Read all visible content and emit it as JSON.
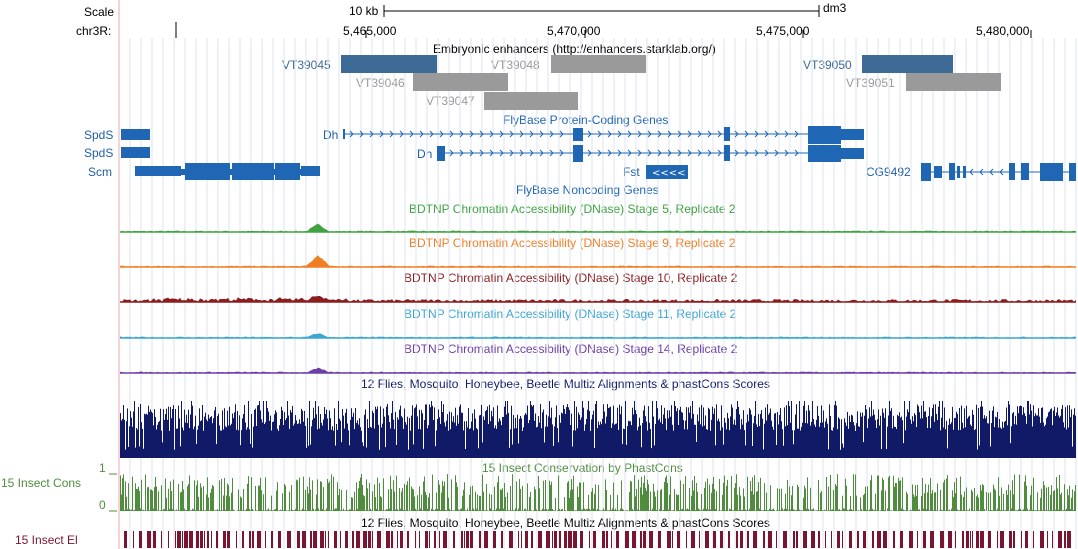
{
  "header": {
    "scale_label": "Scale",
    "scale_value": "10 kb",
    "assembly": "dm3",
    "chrom_label": "chr3R:",
    "positions": [
      "5,465,000",
      "5,470,000",
      "5,475,000",
      "5,480,000"
    ]
  },
  "enhancers": {
    "title": "Embryonic enhancers (http://enhancers.starklab.org/)",
    "items": [
      {
        "name": "VT39045",
        "color": "#3e6a96",
        "strong": true
      },
      {
        "name": "VT39048",
        "color": "#9a9a9a",
        "strong": false
      },
      {
        "name": "VT39050",
        "color": "#3e6a96",
        "strong": true
      },
      {
        "name": "VT39046",
        "color": "#9a9a9a",
        "strong": false
      },
      {
        "name": "VT39051",
        "color": "#9a9a9a",
        "strong": false
      },
      {
        "name": "VT39047",
        "color": "#9a9a9a",
        "strong": false
      }
    ]
  },
  "genes": {
    "title": "FlyBase Protein-Coding Genes",
    "noncoding_title": "FlyBase Noncoding Genes",
    "left_labels": [
      "SpdS",
      "SpdS",
      "Scm"
    ],
    "inline_labels": [
      "Dh",
      "Dh",
      "Fst",
      "CG9492"
    ],
    "color": "#1f66b5"
  },
  "dnase": [
    {
      "title": "BDTNP Chromatin Accessibility (DNase) Stage 5, Replicate 2",
      "color": "#3fa33f"
    },
    {
      "title": "BDTNP Chromatin Accessibility (DNase) Stage 9, Replicate 2",
      "color": "#f07f24"
    },
    {
      "title": "BDTNP Chromatin Accessibility (DNase) Stage 10, Replicate 2",
      "color": "#8b1d1d"
    },
    {
      "title": "BDTNP Chromatin Accessibility (DNase) Stage 11, Replicate 2",
      "color": "#3da6cf"
    },
    {
      "title": "BDTNP Chromatin Accessibility (DNase) Stage 14, Replicate 2",
      "color": "#6c3fa6"
    }
  ],
  "multiz": {
    "title": "12 Flies, Mosquito, Honeybee, Beetle Multiz Alignments & phastCons Scores",
    "color": "#111a66"
  },
  "phastcons": {
    "title": "15 Insect Conservation by PhastCons",
    "left_label": "15 Insect Cons",
    "ymax": "1",
    "ymin": "0",
    "color": "#4f8c3e"
  },
  "elements": {
    "title": "12 Flies, Mosquito, Honeybee, Beetle Multiz Alignments & phastCons Scores",
    "left_label": "15 Insect El",
    "color": "#7a1531"
  }
}
